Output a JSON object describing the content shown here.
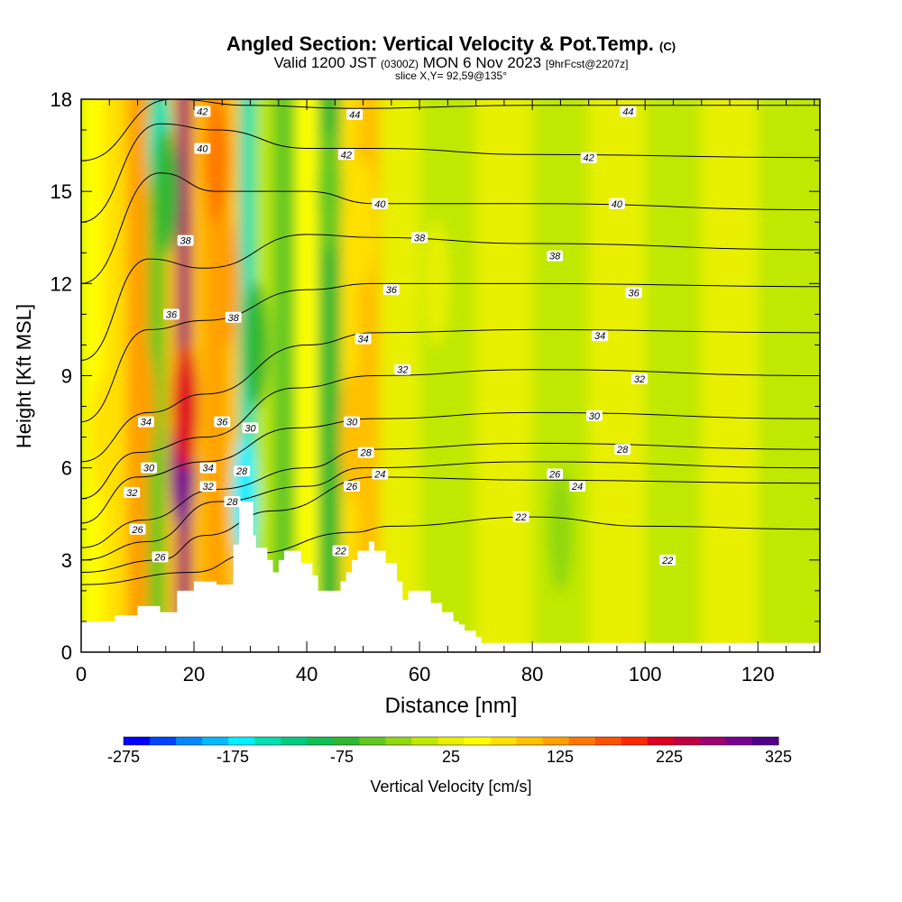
{
  "title": {
    "main": "Angled Section: Vertical Velocity & Pot.Temp.",
    "main_suffix": "(C)",
    "valid_prefix": "Valid 1200 JST",
    "valid_zulu": "(0300Z)",
    "valid_date": "MON 6 Nov 2023",
    "forecast": "[9hrFcst@2207z]",
    "slice": "slice X,Y= 92,59@135°"
  },
  "chart_data": {
    "type": "heatmap",
    "xlabel": "Distance [nm]",
    "ylabel": "Height [Kft MSL]",
    "xlim": [
      0,
      131
    ],
    "ylim": [
      0,
      18
    ],
    "x_ticks": [
      0,
      20,
      40,
      60,
      80,
      100,
      120
    ],
    "y_ticks": [
      0,
      3,
      6,
      9,
      12,
      15,
      18
    ],
    "colorbar": {
      "label": "Vertical Velocity [cm/s]",
      "tick_labels": [
        -275,
        -175,
        -75,
        25,
        125,
        225,
        325
      ],
      "levels": [
        -275,
        -250,
        -225,
        -200,
        -175,
        -150,
        -125,
        -100,
        -75,
        -50,
        -25,
        0,
        25,
        50,
        75,
        100,
        125,
        150,
        175,
        200,
        225,
        250,
        275,
        300,
        325
      ],
      "colors": [
        "#0000ff",
        "#0044ff",
        "#0088ff",
        "#00bbff",
        "#00f0ff",
        "#00e0b0",
        "#00cc80",
        "#10c050",
        "#30b830",
        "#60c820",
        "#90d810",
        "#c0e800",
        "#e8f000",
        "#ffff00",
        "#ffe000",
        "#ffc000",
        "#ffa000",
        "#ff7800",
        "#ff5000",
        "#ff2800",
        "#e00020",
        "#c00040",
        "#a00070",
        "#7a0090",
        "#50008a"
      ]
    },
    "terrain_top_kft": [
      [
        0,
        1.0
      ],
      [
        5,
        1.0
      ],
      [
        6,
        1.2
      ],
      [
        9,
        1.2
      ],
      [
        10,
        1.5
      ],
      [
        13,
        1.5
      ],
      [
        14,
        1.3
      ],
      [
        16,
        1.3
      ],
      [
        17,
        2.0
      ],
      [
        19,
        2.0
      ],
      [
        20,
        2.3
      ],
      [
        23,
        2.3
      ],
      [
        24,
        2.2
      ],
      [
        26,
        2.2
      ],
      [
        27,
        3.5
      ],
      [
        28,
        4.9
      ],
      [
        30,
        4.9
      ],
      [
        30.5,
        3.8
      ],
      [
        31,
        3.4
      ],
      [
        33,
        3.0
      ],
      [
        34,
        2.6
      ],
      [
        35,
        3.0
      ],
      [
        36,
        3.3
      ],
      [
        38,
        3.3
      ],
      [
        39,
        2.9
      ],
      [
        41,
        2.5
      ],
      [
        42,
        2.0
      ],
      [
        45,
        2.0
      ],
      [
        46,
        2.3
      ],
      [
        47,
        2.6
      ],
      [
        48,
        3.0
      ],
      [
        49,
        3.3
      ],
      [
        51,
        3.6
      ],
      [
        52,
        3.3
      ],
      [
        54,
        2.9
      ],
      [
        56,
        2.3
      ],
      [
        57,
        1.7
      ],
      [
        58,
        2.0
      ],
      [
        59,
        2.0
      ],
      [
        61,
        2.0
      ],
      [
        62,
        1.6
      ],
      [
        64,
        1.3
      ],
      [
        66,
        1.0
      ],
      [
        67,
        0.9
      ],
      [
        68,
        0.7
      ],
      [
        70,
        0.5
      ],
      [
        71,
        0.3
      ],
      [
        131,
        0.3
      ]
    ],
    "vertical_velocity_columns": [
      {
        "x": [
          0,
          4
        ],
        "value": 50
      },
      {
        "x": [
          4,
          8
        ],
        "value": 75
      },
      {
        "x": [
          8,
          12
        ],
        "value": 125
      },
      {
        "x": [
          12,
          15
        ],
        "value": -50
      },
      {
        "x": [
          15,
          17
        ],
        "value": 100
      },
      {
        "x": [
          17,
          19.5
        ],
        "value": 275
      },
      {
        "x": [
          19.5,
          22
        ],
        "value": 100
      },
      {
        "x": [
          22,
          25.5
        ],
        "value": 125
      },
      {
        "x": [
          25.5,
          28
        ],
        "value": 100
      },
      {
        "x": [
          28,
          31
        ],
        "value": -150
      },
      {
        "x": [
          31,
          34
        ],
        "value": 0
      },
      {
        "x": [
          34,
          38
        ],
        "value": -50
      },
      {
        "x": [
          38,
          42
        ],
        "value": 50
      },
      {
        "x": [
          42,
          46
        ],
        "value": -75
      },
      {
        "x": [
          46,
          49
        ],
        "value": 75
      },
      {
        "x": [
          49,
          53
        ],
        "value": 100
      },
      {
        "x": [
          53,
          60
        ],
        "value": 25
      },
      {
        "x": [
          60,
          70
        ],
        "value": 0
      },
      {
        "x": [
          70,
          80
        ],
        "value": 25
      },
      {
        "x": [
          80,
          90
        ],
        "value": 0
      },
      {
        "x": [
          90,
          100
        ],
        "value": 25
      },
      {
        "x": [
          100,
          110
        ],
        "value": 0
      },
      {
        "x": [
          110,
          120
        ],
        "value": 25
      },
      {
        "x": [
          120,
          131
        ],
        "value": 0
      }
    ],
    "vertical_velocity_features": [
      {
        "x": 4,
        "y": 7,
        "value": 75
      },
      {
        "x": 11,
        "y": 8,
        "value": 125
      },
      {
        "x": 14,
        "y": 16.5,
        "value": -150
      },
      {
        "x": 15,
        "y": 15,
        "value": -75
      },
      {
        "x": 18,
        "y": 6,
        "value": 300
      },
      {
        "x": 18.5,
        "y": 8,
        "value": 225
      },
      {
        "x": 24,
        "y": 16,
        "value": 150
      },
      {
        "x": 26,
        "y": 12,
        "value": 125
      },
      {
        "x": 29,
        "y": 5,
        "value": -175
      },
      {
        "x": 31,
        "y": 10,
        "value": -75
      },
      {
        "x": 44,
        "y": 15,
        "value": -50
      },
      {
        "x": 48,
        "y": 7,
        "value": 100
      },
      {
        "x": 50,
        "y": 14,
        "value": 75
      },
      {
        "x": 63,
        "y": 12,
        "value": 25
      },
      {
        "x": 85,
        "y": 4,
        "value": -25
      },
      {
        "x": 105,
        "y": 2,
        "value": 0
      }
    ],
    "isentropes": [
      {
        "label": "22",
        "points": [
          [
            0,
            2.2
          ],
          [
            20,
            2.6
          ],
          [
            30,
            3.2
          ],
          [
            48,
            3.9
          ],
          [
            55,
            4.1
          ],
          [
            80,
            4.4
          ],
          [
            100,
            4.1
          ],
          [
            131,
            4.0
          ]
        ]
      },
      {
        "label": "24",
        "points": [
          [
            0,
            2.6
          ],
          [
            14,
            3.0
          ],
          [
            22,
            3.8
          ],
          [
            34,
            4.6
          ],
          [
            52,
            5.7
          ],
          [
            80,
            5.6
          ],
          [
            131,
            5.5
          ]
        ]
      },
      {
        "label": "26",
        "points": [
          [
            0,
            3.0
          ],
          [
            12,
            3.6
          ],
          [
            24,
            4.9
          ],
          [
            40,
            5.4
          ],
          [
            50,
            6.0
          ],
          [
            80,
            6.2
          ],
          [
            131,
            6.0
          ]
        ]
      },
      {
        "label": "28",
        "points": [
          [
            0,
            3.4
          ],
          [
            11,
            4.3
          ],
          [
            24,
            5.3
          ],
          [
            40,
            6.0
          ],
          [
            50,
            6.6
          ],
          [
            80,
            6.8
          ],
          [
            131,
            6.6
          ]
        ]
      },
      {
        "label": "30",
        "points": [
          [
            0,
            4.2
          ],
          [
            10,
            5.7
          ],
          [
            22,
            6.2
          ],
          [
            38,
            7.3
          ],
          [
            52,
            7.6
          ],
          [
            80,
            7.8
          ],
          [
            131,
            7.6
          ]
        ]
      },
      {
        "label": "32",
        "points": [
          [
            0,
            5.0
          ],
          [
            10,
            6.5
          ],
          [
            22,
            7.0
          ],
          [
            38,
            8.6
          ],
          [
            52,
            9.0
          ],
          [
            80,
            9.2
          ],
          [
            131,
            9.0
          ]
        ]
      },
      {
        "label": "34",
        "points": [
          [
            0,
            6.2
          ],
          [
            12,
            7.8
          ],
          [
            22,
            8.4
          ],
          [
            40,
            10.0
          ],
          [
            52,
            10.4
          ],
          [
            80,
            10.5
          ],
          [
            131,
            10.4
          ]
        ]
      },
      {
        "label": "36",
        "points": [
          [
            0,
            7.5
          ],
          [
            12,
            10.5
          ],
          [
            22,
            10.8
          ],
          [
            40,
            11.8
          ],
          [
            52,
            12.0
          ],
          [
            80,
            12.0
          ],
          [
            131,
            11.9
          ]
        ]
      },
      {
        "label": "38",
        "points": [
          [
            0,
            9.5
          ],
          [
            12,
            12.8
          ],
          [
            22,
            12.5
          ],
          [
            40,
            13.6
          ],
          [
            52,
            13.5
          ],
          [
            80,
            13.3
          ],
          [
            131,
            13.1
          ]
        ]
      },
      {
        "label": "40",
        "points": [
          [
            0,
            12.0
          ],
          [
            14,
            15.6
          ],
          [
            24,
            15.0
          ],
          [
            40,
            15.0
          ],
          [
            52,
            14.6
          ],
          [
            80,
            14.6
          ],
          [
            131,
            14.4
          ]
        ]
      },
      {
        "label": "42",
        "points": [
          [
            0,
            14.0
          ],
          [
            14,
            17.2
          ],
          [
            24,
            17.0
          ],
          [
            40,
            16.4
          ],
          [
            52,
            16.4
          ],
          [
            80,
            16.2
          ],
          [
            131,
            16.1
          ]
        ]
      },
      {
        "label": "44",
        "points": [
          [
            0,
            16.0
          ],
          [
            16,
            18.0
          ],
          [
            30,
            17.8
          ],
          [
            48,
            17.7
          ],
          [
            80,
            17.8
          ],
          [
            131,
            17.8
          ]
        ]
      }
    ],
    "contour_labels": [
      {
        "text": "42",
        "x": 21.5,
        "y": 17.6
      },
      {
        "text": "40",
        "x": 21.5,
        "y": 16.4
      },
      {
        "text": "38",
        "x": 18.5,
        "y": 13.4
      },
      {
        "text": "36",
        "x": 16.0,
        "y": 11.0
      },
      {
        "text": "38",
        "x": 27.0,
        "y": 10.9
      },
      {
        "text": "34",
        "x": 11.5,
        "y": 7.5
      },
      {
        "text": "36",
        "x": 25.0,
        "y": 7.5
      },
      {
        "text": "30",
        "x": 30.0,
        "y": 7.3
      },
      {
        "text": "34",
        "x": 22.5,
        "y": 6.0
      },
      {
        "text": "30",
        "x": 12.0,
        "y": 6.0
      },
      {
        "text": "32",
        "x": 22.5,
        "y": 5.4
      },
      {
        "text": "28",
        "x": 28.5,
        "y": 5.9
      },
      {
        "text": "32",
        "x": 9.0,
        "y": 5.2
      },
      {
        "text": "28",
        "x": 26.8,
        "y": 4.9
      },
      {
        "text": "26",
        "x": 10.0,
        "y": 4.0
      },
      {
        "text": "26",
        "x": 14.0,
        "y": 3.1
      },
      {
        "text": "44",
        "x": 48.5,
        "y": 17.5
      },
      {
        "text": "42",
        "x": 47.0,
        "y": 16.2
      },
      {
        "text": "40",
        "x": 53.0,
        "y": 14.6
      },
      {
        "text": "38",
        "x": 60.0,
        "y": 13.5
      },
      {
        "text": "36",
        "x": 55.0,
        "y": 11.8
      },
      {
        "text": "34",
        "x": 50.0,
        "y": 10.2
      },
      {
        "text": "32",
        "x": 57.0,
        "y": 9.2
      },
      {
        "text": "30",
        "x": 48.0,
        "y": 7.5
      },
      {
        "text": "28",
        "x": 50.5,
        "y": 6.5
      },
      {
        "text": "24",
        "x": 53.0,
        "y": 5.8
      },
      {
        "text": "26",
        "x": 48.0,
        "y": 5.4
      },
      {
        "text": "22",
        "x": 46.0,
        "y": 3.3
      },
      {
        "text": "44",
        "x": 97.0,
        "y": 17.6
      },
      {
        "text": "42",
        "x": 90.0,
        "y": 16.1
      },
      {
        "text": "40",
        "x": 95.0,
        "y": 14.6
      },
      {
        "text": "38",
        "x": 84.0,
        "y": 12.9
      },
      {
        "text": "36",
        "x": 98.0,
        "y": 11.7
      },
      {
        "text": "34",
        "x": 92.0,
        "y": 10.3
      },
      {
        "text": "32",
        "x": 99.0,
        "y": 8.9
      },
      {
        "text": "30",
        "x": 91.0,
        "y": 7.7
      },
      {
        "text": "28",
        "x": 96.0,
        "y": 6.6
      },
      {
        "text": "26",
        "x": 84.0,
        "y": 5.8
      },
      {
        "text": "24",
        "x": 88.0,
        "y": 5.4
      },
      {
        "text": "22",
        "x": 78.0,
        "y": 4.4
      },
      {
        "text": "22",
        "x": 104.0,
        "y": 3.0
      }
    ]
  }
}
